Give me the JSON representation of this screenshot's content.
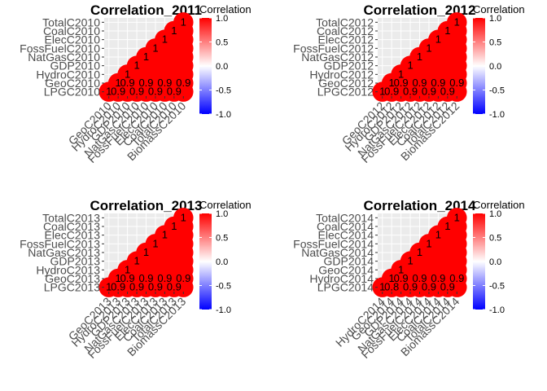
{
  "chart_data": [
    {
      "type": "heatmap",
      "title": "Correlation_2011",
      "y_labels": [
        "TotalC2010",
        "CoalC2010",
        "ElecC2010",
        "FossFuelC2010",
        "NatGasC2010",
        "GDP2010",
        "HydroC2010",
        "GeoC2010",
        "LPGC2010"
      ],
      "x_labels": [
        "GeoC2010",
        "HydroC2010",
        "GDP2010",
        "NatGasC2010",
        "FossFuelC2010",
        "ElecC2010",
        "CoalC2010",
        "TotalC2010",
        "BiomassC2010"
      ],
      "legend_title": "Correlation",
      "legend_ticks": [
        "1.0",
        "0.5",
        "0.0",
        "-0.5",
        "-1.0"
      ],
      "value_range": [
        -1,
        1
      ],
      "colors": {
        "low": "#0000ff",
        "mid": "#ffffff",
        "high": "#ff0000",
        "grid_bg": "#ebebeb"
      },
      "cell_value": 1,
      "inner_labels": [
        "1",
        "0.9",
        "0.9",
        "0.9",
        "0.9",
        "0.9",
        "0.9",
        "0.9",
        "0.9"
      ]
    },
    {
      "type": "heatmap",
      "title": "Correlation_2012",
      "y_labels": [
        "TotalC2012",
        "CoalC2012",
        "ElecC2012",
        "FossFuelC2012",
        "NatGasC2012",
        "GDP2012",
        "HydroC2012",
        "GeoC2012",
        "LPGC2012"
      ],
      "x_labels": [
        "GeoC2012",
        "HydroC2012",
        "GDP2012",
        "NatGasC2012",
        "FossFuelC2012",
        "ElecC2012",
        "CoalC2012",
        "TotalC2012",
        "BiomassC2012"
      ],
      "legend_title": "Correlation",
      "legend_ticks": [
        "1.0",
        "0.5",
        "0.0",
        "-0.5",
        "-1.0"
      ],
      "value_range": [
        -1,
        1
      ],
      "colors": {
        "low": "#0000ff",
        "mid": "#ffffff",
        "high": "#ff0000",
        "grid_bg": "#ebebeb"
      },
      "cell_value": 1,
      "inner_labels": [
        "1",
        "0.9",
        "0.9",
        "0.9",
        "0.9",
        "0.9",
        "0.9",
        "0.9",
        "0.9"
      ]
    },
    {
      "type": "heatmap",
      "title": "Correlation_2013",
      "y_labels": [
        "TotalC2013",
        "CoalC2013",
        "ElecC2013",
        "FossFuelC2013",
        "NatGasC2013",
        "GDP2013",
        "HydroC2013",
        "GeoC2013",
        "LPGC2013"
      ],
      "x_labels": [
        "GeoC2013",
        "HydroC2013",
        "GDP2013",
        "NatGasC2013",
        "FossFuelC2013",
        "ElecC2013",
        "CoalC2013",
        "TotalC2013",
        "BiomassC2013"
      ],
      "legend_title": "Correlation",
      "legend_ticks": [
        "1.0",
        "0.5",
        "0.0",
        "-0.5",
        "-1.0"
      ],
      "value_range": [
        -1,
        1
      ],
      "colors": {
        "low": "#0000ff",
        "mid": "#ffffff",
        "high": "#ff0000",
        "grid_bg": "#ebebeb"
      },
      "cell_value": 1,
      "inner_labels": [
        "1",
        "0.9",
        "0.9",
        "0.9",
        "0.9",
        "0.9",
        "0.9",
        "0.9",
        "0.9"
      ]
    },
    {
      "type": "heatmap",
      "title": "Correlation_2014",
      "y_labels": [
        "TotalC2014",
        "CoalC2014",
        "ElecC2014",
        "FossFuelC2014",
        "NatGasC2014",
        "GDP2014",
        "GeoC2014",
        "HydroC2014",
        "LPGC2014"
      ],
      "x_labels": [
        "HydroC2014",
        "GeoC2014",
        "GDP2014",
        "NatGasC2014",
        "FossFuelC2014",
        "ElecC2014",
        "CoalC2014",
        "TotalC2014",
        "BiomassC2014"
      ],
      "legend_title": "Correlation",
      "legend_ticks": [
        "1.0",
        "0.5",
        "0.0",
        "-0.5",
        "-1.0"
      ],
      "value_range": [
        -1,
        1
      ],
      "colors": {
        "low": "#0000ff",
        "mid": "#ffffff",
        "high": "#ff0000",
        "grid_bg": "#ebebeb"
      },
      "cell_value": 1,
      "inner_labels": [
        "1",
        "0.8",
        "0.9",
        "0.9",
        "0.9",
        "0.9",
        "0.9",
        "0.9",
        "0.9"
      ]
    }
  ]
}
